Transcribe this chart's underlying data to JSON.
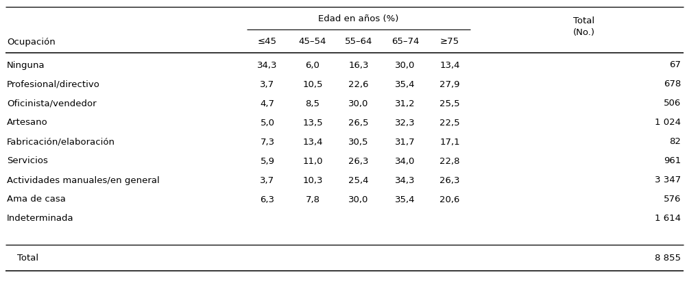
{
  "title_group_header": "Edad en años (%)",
  "col_header_left": "Ocupación",
  "age_cols": [
    "≤45",
    "45–54",
    "55–64",
    "65–74",
    "≥75"
  ],
  "rows": [
    {
      "ocupacion": "Ninguna",
      "vals": [
        "34,3",
        "6,0",
        "16,3",
        "30,0",
        "13,4"
      ],
      "total": "67"
    },
    {
      "ocupacion": "Profesional/directivo",
      "vals": [
        "3,7",
        "10,5",
        "22,6",
        "35,4",
        "27,9"
      ],
      "total": "678"
    },
    {
      "ocupacion": "Oficinista/vendedor",
      "vals": [
        "4,7",
        "8,5",
        "30,0",
        "31,2",
        "25,5"
      ],
      "total": "506"
    },
    {
      "ocupacion": "Artesano",
      "vals": [
        "5,0",
        "13,5",
        "26,5",
        "32,3",
        "22,5"
      ],
      "total": "1 024"
    },
    {
      "ocupacion": "Fabricación/elaboración",
      "vals": [
        "7,3",
        "13,4",
        "30,5",
        "31,7",
        "17,1"
      ],
      "total": "82"
    },
    {
      "ocupacion": "Servicios",
      "vals": [
        "5,9",
        "11,0",
        "26,3",
        "34,0",
        "22,8"
      ],
      "total": "961"
    },
    {
      "ocupacion": "Actividades manuales/en general",
      "vals": [
        "3,7",
        "10,3",
        "25,4",
        "34,3",
        "26,3"
      ],
      "total": "3 347"
    },
    {
      "ocupacion": "Ama de casa",
      "vals": [
        "6,3",
        "7,8",
        "30,0",
        "35,4",
        "20,6"
      ],
      "total": "576"
    },
    {
      "ocupacion": "Indeterminada",
      "vals": [
        "",
        "",
        "",
        "",
        ""
      ],
      "total": "1 614"
    }
  ],
  "total_row": {
    "ocupacion": "Total",
    "vals": [
      "",
      "",
      "",
      "",
      ""
    ],
    "total": "8 855"
  },
  "bg_color": "#ffffff",
  "text_color": "#000000",
  "font_size": 9.5,
  "header_font_size": 9.5
}
